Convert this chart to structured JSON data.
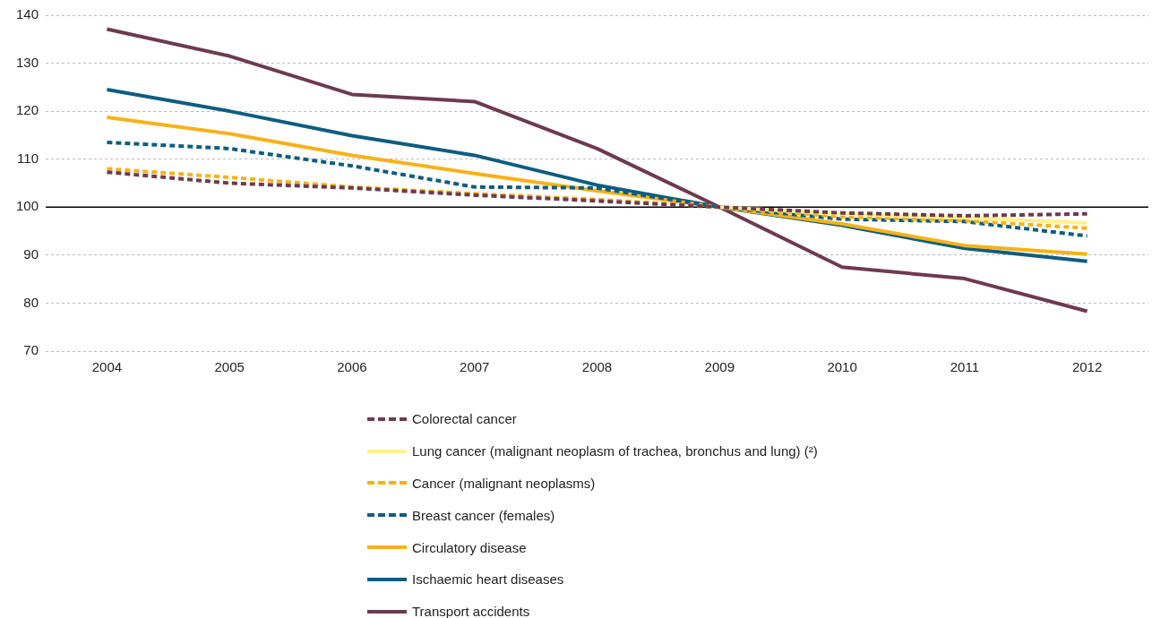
{
  "chart_data": {
    "type": "line",
    "categories": [
      "2004",
      "2005",
      "2006",
      "2007",
      "2008",
      "2009",
      "2010",
      "2011",
      "2012"
    ],
    "series": [
      {
        "name": "Colorectal cancer",
        "color": "#6e3a50",
        "line_style": "dashed",
        "values": [
          107.3,
          105,
          104,
          102.5,
          101.3,
          100,
          98.8,
          98.2,
          98.6
        ]
      },
      {
        "name": "Lung cancer (malignant neoplasm of trachea, bronchus and lung) (²)",
        "color": "#fff08c",
        "line_style": "solid",
        "values": [
          null,
          null,
          null,
          null,
          null,
          100,
          98.6,
          97.8,
          96.7
        ]
      },
      {
        "name": "Cancer (malignant neoplasms)",
        "color": "#f6b219",
        "line_style": "dashed",
        "values": [
          108,
          106.2,
          104.2,
          102.8,
          101.6,
          100,
          98,
          97.2,
          95.6
        ]
      },
      {
        "name": "Breast cancer (females)",
        "color": "#0e5d80",
        "line_style": "dashed",
        "values": [
          113.5,
          112.2,
          108.6,
          104.2,
          104,
          100,
          97.5,
          97,
          94
        ]
      },
      {
        "name": "Circulatory disease",
        "color": "#f6b219",
        "line_style": "solid",
        "values": [
          118.7,
          115.3,
          110.8,
          107,
          103.4,
          100,
          96.5,
          92,
          90.2
        ]
      },
      {
        "name": "Ischaemic heart diseases",
        "color": "#0e5d80",
        "line_style": "solid",
        "values": [
          124.5,
          120,
          114.9,
          110.8,
          104.6,
          100,
          96.2,
          91.4,
          88.7
        ]
      },
      {
        "name": "Transport accidents",
        "color": "#6e3a50",
        "line_style": "solid",
        "values": [
          137.1,
          131.5,
          123.5,
          122,
          112.2,
          100,
          87.5,
          85.1,
          78.3
        ]
      }
    ],
    "ylim": [
      70,
      140
    ],
    "yticks": [
      70,
      80,
      90,
      100,
      110,
      120,
      130,
      140
    ],
    "ref_lines": [
      {
        "axis": "y",
        "value": 100,
        "color": "#000000"
      }
    ],
    "grid": "y",
    "legend": "bottom",
    "marker": "none"
  }
}
